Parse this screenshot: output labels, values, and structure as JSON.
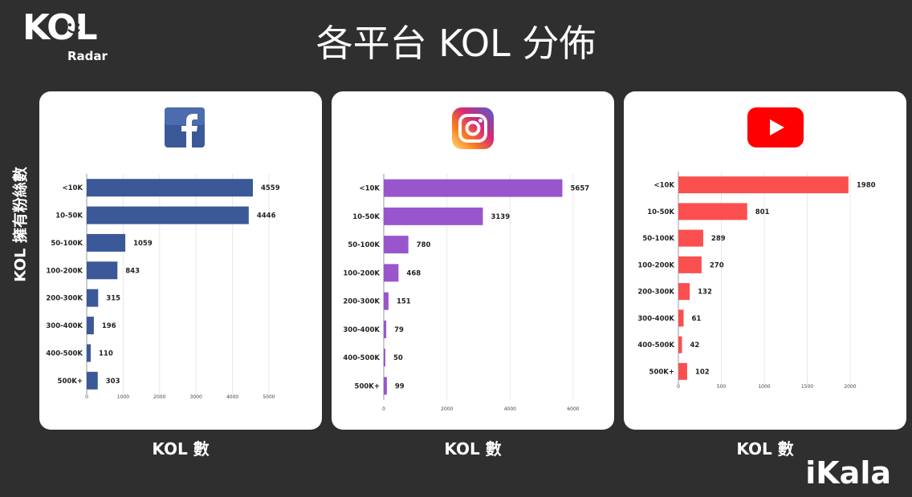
{
  "logo": {
    "main": "KOL",
    "sub": "Radar"
  },
  "title": "各平台 KOL 分佈",
  "ylabel": "KOL 擁有粉絲數",
  "brand": "iKala",
  "icons": {
    "facebook": "facebook-icon",
    "instagram": "instagram-icon",
    "youtube": "youtube-icon"
  },
  "chart_data": [
    {
      "type": "bar",
      "orientation": "horizontal",
      "platform": "Facebook",
      "color": "#3b5998",
      "categories": [
        "<10K",
        "10-50K",
        "50-100K",
        "100-200K",
        "200-300K",
        "300-400K",
        "400-500K",
        "500K+"
      ],
      "values": [
        4559,
        4446,
        1059,
        843,
        315,
        196,
        110,
        303
      ],
      "xlim": [
        0,
        5000
      ],
      "xticks": [
        0,
        1000,
        2000,
        3000,
        4000,
        5000
      ],
      "xlabel": "KOL 數",
      "grid": true
    },
    {
      "type": "bar",
      "orientation": "horizontal",
      "platform": "Instagram",
      "color": "#9956cc",
      "categories": [
        "<10K",
        "10-50K",
        "50-100K",
        "100-200K",
        "200-300K",
        "300-400K",
        "400-500K",
        "500K+"
      ],
      "values": [
        5657,
        3139,
        780,
        468,
        151,
        79,
        50,
        99
      ],
      "xlim": [
        0,
        6000
      ],
      "xticks": [
        0,
        2000,
        4000,
        6000
      ],
      "xlabel": "KOL 數",
      "grid": true
    },
    {
      "type": "bar",
      "orientation": "horizontal",
      "platform": "YouTube",
      "color": "#fb4f4f",
      "categories": [
        "<10K",
        "10-50K",
        "50-100K",
        "100-200K",
        "200-300K",
        "300-400K",
        "400-500K",
        "500K+"
      ],
      "values": [
        1980,
        801,
        289,
        270,
        132,
        61,
        42,
        102
      ],
      "xlim": [
        0,
        2000
      ],
      "xticks": [
        0,
        500,
        1000,
        1500,
        2000
      ],
      "xlabel": "KOL 數",
      "grid": true
    }
  ]
}
